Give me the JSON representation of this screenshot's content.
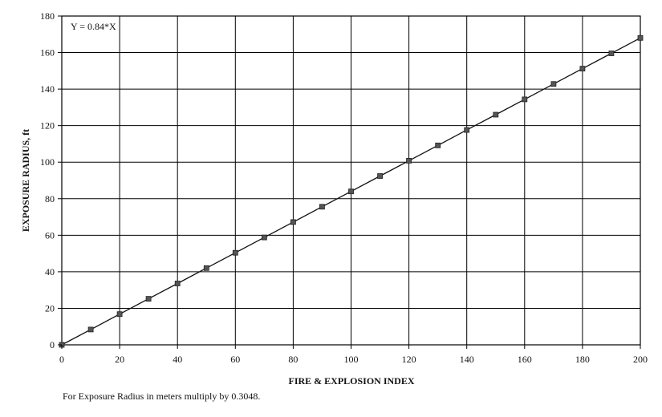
{
  "chart_data": {
    "type": "line",
    "annotation": "Y = 0.84*X",
    "xlabel": "FIRE & EXPLOSION INDEX",
    "ylabel": "EXPOSURE RADIUS, ft",
    "xlim": [
      0,
      200
    ],
    "ylim": [
      0,
      180
    ],
    "x_ticks": [
      "0",
      "20",
      "40",
      "60",
      "80",
      "100",
      "120",
      "140",
      "160",
      "180",
      "200"
    ],
    "y_ticks": [
      "0",
      "20",
      "40",
      "60",
      "80",
      "100",
      "120",
      "140",
      "160",
      "180"
    ],
    "grid": true,
    "series": [
      {
        "x": [
          0,
          10,
          20,
          30,
          40,
          50,
          60,
          70,
          80,
          90,
          100,
          110,
          120,
          130,
          140,
          150,
          160,
          170,
          180,
          190,
          200
        ],
        "values": [
          0,
          8.4,
          16.8,
          25.2,
          33.6,
          42,
          50.4,
          58.8,
          67.2,
          75.6,
          84,
          92.4,
          100.8,
          109.2,
          117.6,
          126,
          134.4,
          142.8,
          151.2,
          159.6,
          168
        ]
      }
    ],
    "colors": {
      "line": "#111111",
      "marker": "#555555",
      "grid": "#000000"
    }
  },
  "footnote": "For Exposure Radius in meters multiply by 0.3048."
}
